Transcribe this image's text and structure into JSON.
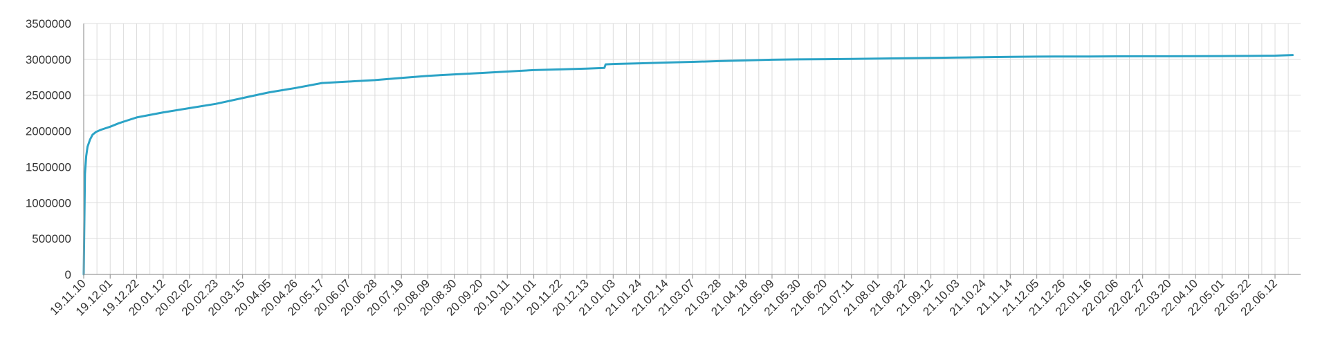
{
  "chart_data": {
    "type": "line",
    "title": "",
    "xlabel": "",
    "ylabel": "",
    "ylim": [
      0,
      3500000
    ],
    "y_ticks": [
      0,
      500000,
      1000000,
      1500000,
      2000000,
      2500000,
      3000000,
      3500000
    ],
    "x_tick_labels": [
      "19.11.10",
      "19.12.01",
      "19.12.22",
      "20.01.12",
      "20.02.02",
      "20.02.23",
      "20.03.15",
      "20.04.05",
      "20.04.26",
      "20.05.17",
      "20.06.07",
      "20.06.28",
      "20.07.19",
      "20.08.09",
      "20.08.30",
      "20.09.20",
      "20.10.11",
      "20.11.01",
      "20.11.22",
      "20.12.13",
      "21.01.03",
      "21.01.24",
      "21.02.14",
      "21.03.07",
      "21.03.28",
      "21.04.18",
      "21.05.09",
      "21.05.30",
      "21.06.20",
      "21.07.11",
      "21.08.01",
      "21.08.22",
      "21.09.12",
      "21.10.03",
      "21.10.24",
      "21.11.14",
      "21.12.05",
      "21.12.26",
      "22.01.16",
      "22.02.06",
      "22.02.27",
      "22.03.20",
      "22.04.10",
      "22.05.01",
      "22.05.22",
      "22.06.12"
    ],
    "grid": true,
    "legend": "none",
    "color": "#2ba3c6",
    "series": [
      {
        "x": [
          "19.11.10",
          "19.11.11",
          "19.11.12",
          "19.11.13",
          "19.11.15",
          "19.11.17",
          "19.11.20",
          "19.11.24",
          "19.12.01",
          "19.12.08",
          "19.12.15",
          "19.12.22",
          "20.01.12",
          "20.02.02",
          "20.02.23",
          "20.03.15",
          "20.04.05",
          "20.04.26",
          "20.05.17",
          "20.06.07",
          "20.06.28",
          "20.07.19",
          "20.08.09",
          "20.08.30",
          "20.09.20",
          "20.10.11",
          "20.11.01",
          "20.11.22",
          "20.12.13",
          "20.12.27",
          "20.12.28",
          "21.01.03",
          "21.01.24",
          "21.02.14",
          "21.03.07",
          "21.03.28",
          "21.04.18",
          "21.05.09",
          "21.05.30",
          "21.06.20",
          "21.07.11",
          "21.08.01",
          "21.08.22",
          "21.09.12",
          "21.10.03",
          "21.10.24",
          "21.11.14",
          "21.12.05",
          "21.12.26",
          "22.01.16",
          "22.02.06",
          "22.02.27",
          "22.03.20",
          "22.04.10",
          "22.05.01",
          "22.05.22",
          "22.06.12",
          "22.06.26"
        ],
        "values": [
          0,
          1400000,
          1650000,
          1780000,
          1880000,
          1950000,
          1990000,
          2020000,
          2060000,
          2110000,
          2150000,
          2190000,
          2260000,
          2320000,
          2380000,
          2460000,
          2540000,
          2600000,
          2670000,
          2690000,
          2710000,
          2740000,
          2770000,
          2790000,
          2810000,
          2830000,
          2850000,
          2860000,
          2870000,
          2880000,
          2930000,
          2935000,
          2945000,
          2955000,
          2965000,
          2975000,
          2985000,
          2995000,
          3000000,
          3002000,
          3005000,
          3010000,
          3015000,
          3020000,
          3025000,
          3030000,
          3035000,
          3038000,
          3040000,
          3040000,
          3042000,
          3043000,
          3043000,
          3045000,
          3046000,
          3048000,
          3052000,
          3060000
        ]
      }
    ]
  }
}
